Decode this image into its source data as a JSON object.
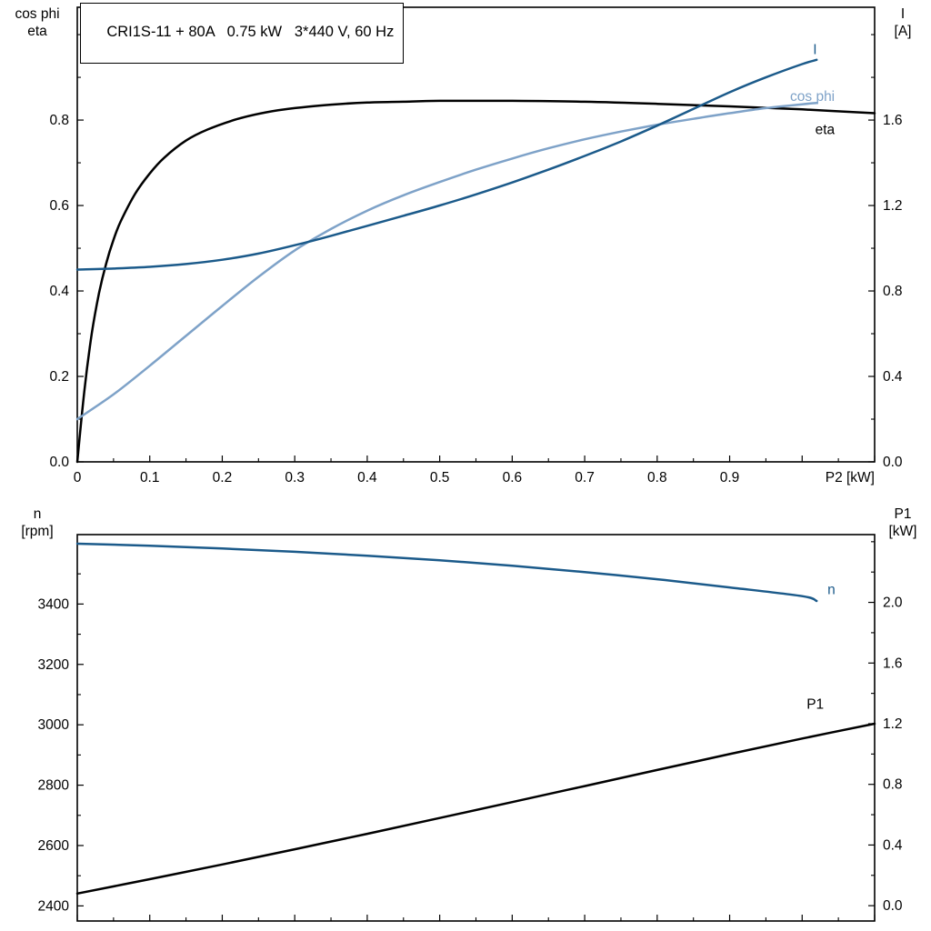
{
  "title_box": {
    "text": "CRI1S-11 + 80A   0.75 kW   3*440 V, 60 Hz"
  },
  "colors": {
    "dark_blue": "#1b5a8a",
    "light_blue": "#7ea2c8",
    "curve_black": "#000000",
    "frame": "#000000"
  },
  "labels": {
    "top_left_1": "cos phi",
    "top_left_2": "eta",
    "top_right_1": "I",
    "top_right_2": "[A]",
    "bottom_left_1": "n",
    "bottom_left_2": "[rpm]",
    "bottom_right_1": "P1",
    "bottom_right_2": "[kW]"
  },
  "chart_data": [
    {
      "type": "line",
      "title": "CRI1S-11 + 80A  0.75 kW  3*440 V, 60 Hz",
      "xlabel": "P2 [kW]",
      "x_min": 0,
      "x_max": 1.1,
      "x_ticks": {
        "values": [
          0,
          0.1,
          0.2,
          0.3,
          0.4,
          0.5,
          0.6,
          0.7,
          0.8,
          0.9,
          1.0,
          1.1
        ],
        "labels": [
          "0",
          "0.1",
          "0.2",
          "0.3",
          "0.4",
          "0.5",
          "0.6",
          "0.7",
          "0.8",
          "0.9",
          "",
          ""
        ],
        "minor_step": 0.05
      },
      "left_axis": {
        "name": "cos phi / eta",
        "min": 0,
        "max": 1.064,
        "tick_values": [
          0,
          0.2,
          0.4,
          0.6,
          0.8
        ],
        "tick_labels": [
          "0.0",
          "0.2",
          "0.4",
          "0.6",
          "0.8"
        ],
        "minor_step": 0.1
      },
      "right_axis": {
        "name": "I [A]",
        "min": 0,
        "max": 2.128,
        "tick_values": [
          0,
          0.4,
          0.8,
          1.2,
          1.6
        ],
        "tick_labels": [
          "0.0",
          "0.4",
          "0.8",
          "1.2",
          "1.6"
        ],
        "minor_step": 0.2
      },
      "series": [
        {
          "name": "eta",
          "axis": "left",
          "color_key": "curve_black",
          "label": "eta",
          "label_at": [
            1.045,
            0.778
          ],
          "label_anchor": "end",
          "points": [
            [
              0,
              0
            ],
            [
              0.01,
              0.17
            ],
            [
              0.02,
              0.3
            ],
            [
              0.03,
              0.395
            ],
            [
              0.04,
              0.465
            ],
            [
              0.05,
              0.52
            ],
            [
              0.06,
              0.563
            ],
            [
              0.08,
              0.628
            ],
            [
              0.1,
              0.675
            ],
            [
              0.12,
              0.712
            ],
            [
              0.15,
              0.752
            ],
            [
              0.18,
              0.778
            ],
            [
              0.22,
              0.802
            ],
            [
              0.26,
              0.818
            ],
            [
              0.3,
              0.828
            ],
            [
              0.35,
              0.836
            ],
            [
              0.4,
              0.841
            ],
            [
              0.45,
              0.843
            ],
            [
              0.5,
              0.845
            ],
            [
              0.6,
              0.845
            ],
            [
              0.7,
              0.843
            ],
            [
              0.8,
              0.838
            ],
            [
              0.9,
              0.832
            ],
            [
              1.0,
              0.825
            ],
            [
              1.1,
              0.816
            ]
          ]
        },
        {
          "name": "cos phi",
          "axis": "left",
          "color_key": "light_blue",
          "label": "cos phi",
          "label_at": [
            1.045,
            0.855
          ],
          "label_anchor": "end",
          "points": [
            [
              0,
              0.1
            ],
            [
              0.05,
              0.158
            ],
            [
              0.1,
              0.225
            ],
            [
              0.15,
              0.295
            ],
            [
              0.2,
              0.365
            ],
            [
              0.25,
              0.433
            ],
            [
              0.3,
              0.495
            ],
            [
              0.35,
              0.545
            ],
            [
              0.4,
              0.588
            ],
            [
              0.45,
              0.624
            ],
            [
              0.5,
              0.655
            ],
            [
              0.55,
              0.684
            ],
            [
              0.6,
              0.71
            ],
            [
              0.65,
              0.734
            ],
            [
              0.7,
              0.755
            ],
            [
              0.75,
              0.773
            ],
            [
              0.8,
              0.789
            ],
            [
              0.85,
              0.803
            ],
            [
              0.9,
              0.816
            ],
            [
              0.95,
              0.828
            ],
            [
              1.0,
              0.837
            ],
            [
              1.02,
              0.84
            ]
          ]
        },
        {
          "name": "I",
          "axis": "right",
          "color_key": "dark_blue",
          "label": "I",
          "label_at": [
            1.015,
            1.93
          ],
          "label_anchor": "start",
          "points": [
            [
              0,
              0.9
            ],
            [
              0.05,
              0.905
            ],
            [
              0.1,
              0.913
            ],
            [
              0.15,
              0.926
            ],
            [
              0.2,
              0.946
            ],
            [
              0.25,
              0.975
            ],
            [
              0.3,
              1.014
            ],
            [
              0.35,
              1.058
            ],
            [
              0.4,
              1.105
            ],
            [
              0.45,
              1.152
            ],
            [
              0.5,
              1.2
            ],
            [
              0.55,
              1.252
            ],
            [
              0.6,
              1.308
            ],
            [
              0.65,
              1.368
            ],
            [
              0.7,
              1.432
            ],
            [
              0.75,
              1.5
            ],
            [
              0.8,
              1.574
            ],
            [
              0.85,
              1.652
            ],
            [
              0.9,
              1.73
            ],
            [
              0.95,
              1.8
            ],
            [
              1.0,
              1.862
            ],
            [
              1.02,
              1.882
            ]
          ]
        }
      ]
    },
    {
      "type": "line",
      "title": "",
      "xlabel": "",
      "x_min": 0,
      "x_max": 1.1,
      "x_ticks": {
        "values": [
          0,
          0.1,
          0.2,
          0.3,
          0.4,
          0.5,
          0.6,
          0.7,
          0.8,
          0.9,
          1.0,
          1.1
        ],
        "labels": [
          "",
          "",
          "",
          "",
          "",
          "",
          "",
          "",
          "",
          "",
          "",
          ""
        ],
        "minor_step": 0.05
      },
      "left_axis": {
        "name": "n [rpm]",
        "min": 2350,
        "max": 3630,
        "tick_values": [
          2400,
          2600,
          2800,
          3000,
          3200,
          3400
        ],
        "tick_labels": [
          "2400",
          "2600",
          "2800",
          "3000",
          "3200",
          "3400"
        ],
        "minor_step": 100
      },
      "right_axis": {
        "name": "P1 [kW]",
        "min": -0.101,
        "max": 2.447,
        "tick_values": [
          0,
          0.4,
          0.8,
          1.2,
          1.6,
          2.0
        ],
        "tick_labels": [
          "0.0",
          "0.4",
          "0.8",
          "1.2",
          "1.6",
          "2.0"
        ],
        "minor_step": 0.2
      },
      "series": [
        {
          "name": "n",
          "axis": "left",
          "color_key": "dark_blue",
          "label": "n",
          "label_at": [
            1.035,
            3448
          ],
          "label_anchor": "start",
          "points": [
            [
              0,
              3600
            ],
            [
              0.1,
              3593
            ],
            [
              0.2,
              3584
            ],
            [
              0.3,
              3573
            ],
            [
              0.4,
              3560
            ],
            [
              0.5,
              3545
            ],
            [
              0.6,
              3527
            ],
            [
              0.7,
              3506
            ],
            [
              0.8,
              3482
            ],
            [
              0.9,
              3455
            ],
            [
              1.0,
              3426
            ],
            [
              1.02,
              3410
            ]
          ]
        },
        {
          "name": "P1",
          "axis": "right",
          "color_key": "curve_black",
          "label": "P1",
          "label_at": [
            1.03,
            1.33
          ],
          "label_anchor": "end",
          "points": [
            [
              0,
              0.08
            ],
            [
              0.1,
              0.175
            ],
            [
              0.2,
              0.272
            ],
            [
              0.3,
              0.372
            ],
            [
              0.4,
              0.474
            ],
            [
              0.5,
              0.578
            ],
            [
              0.6,
              0.683
            ],
            [
              0.7,
              0.789
            ],
            [
              0.8,
              0.895
            ],
            [
              0.9,
              1.0
            ],
            [
              1.0,
              1.102
            ],
            [
              1.1,
              1.2
            ]
          ]
        }
      ]
    }
  ]
}
